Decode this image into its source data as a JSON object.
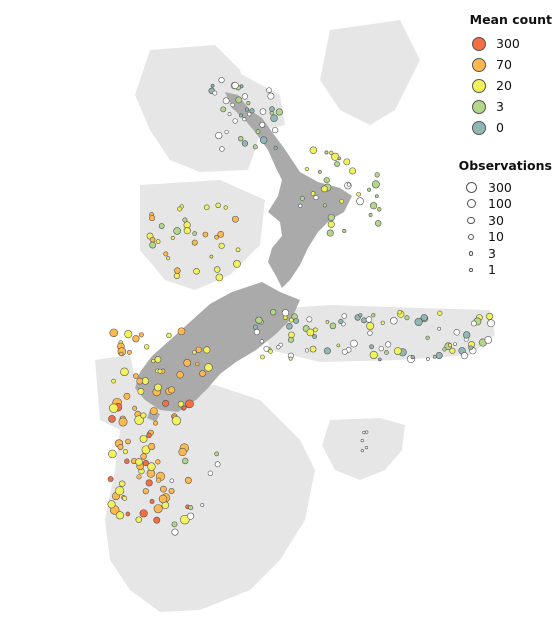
{
  "map": {
    "land_color": "#e6e6e6",
    "nz_color": "#aaaaaa",
    "point_stroke": "#555555",
    "north_island_icon": "north-island-landmass",
    "south_island_icon": "south-island-landmass"
  },
  "legend_mean": {
    "title": "Mean count",
    "items": [
      {
        "label": "300",
        "color": "#f46d43"
      },
      {
        "label": "70",
        "color": "#fdb94e"
      },
      {
        "label": "20",
        "color": "#f2f25a"
      },
      {
        "label": "3",
        "color": "#b2d68a"
      },
      {
        "label": "0",
        "color": "#8fb7b5"
      }
    ]
  },
  "legend_obs": {
    "title": "Observations",
    "items": [
      {
        "label": "300",
        "size": 11
      },
      {
        "label": "100",
        "size": 9
      },
      {
        "label": "30",
        "size": 7.5
      },
      {
        "label": "10",
        "size": 6
      },
      {
        "label": "3",
        "size": 4.5
      },
      {
        "label": "1",
        "size": 3.5
      }
    ]
  }
}
